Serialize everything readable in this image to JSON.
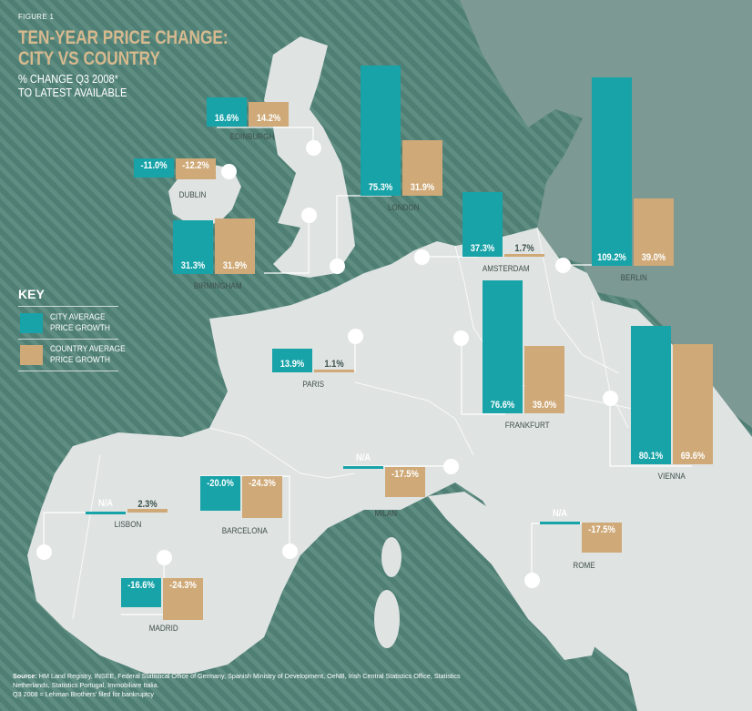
{
  "figure_label": "FIGURE 1",
  "title": "TEN-YEAR PRICE CHANGE:\nCITY VS COUNTRY",
  "subtitle": "% CHANGE Q3 2008*\nTO LATEST AVAILABLE",
  "key": {
    "title": "KEY",
    "city_label": "CITY AVERAGE\nPRICE GROWTH",
    "country_label": "COUNTRY AVERAGE\nPRICE GROWTH"
  },
  "colors": {
    "city": "#17a3a8",
    "country": "#cfa977",
    "sea": "#4f7f74",
    "land": "#dfe3e2",
    "land_far": "#7c9993"
  },
  "source": {
    "prefix": "Source:",
    "text": "HM Land Registry, INSEE, Federal Statistical Office of Germany, Spanish Ministry of Development, OeNB, Irish Central Statistics Office, Statistics Netherlands, Statistics Portugal, Immobiliare Italia.",
    "note": "Q3 2008 = Lehman Brothers' filed for bankruptcy"
  },
  "chart_data": {
    "type": "bar",
    "title": "TEN-YEAR PRICE CHANGE: CITY VS COUNTRY",
    "subtitle": "% CHANGE Q3 2008* TO LATEST AVAILABLE",
    "unit": "%",
    "legend": "left",
    "series_names": [
      "CITY AVERAGE PRICE GROWTH",
      "COUNTRY AVERAGE PRICE GROWTH"
    ],
    "cities": [
      {
        "name": "EDINBURGH",
        "city": 16.6,
        "country": 14.2,
        "city_text": "16.6%",
        "country_text": "14.2%"
      },
      {
        "name": "DUBLIN",
        "city": -11.0,
        "country": -12.2,
        "city_text": "-11.0%",
        "country_text": "-12.2%"
      },
      {
        "name": "LONDON",
        "city": 75.3,
        "country": 31.9,
        "city_text": "75.3%",
        "country_text": "31.9%"
      },
      {
        "name": "BIRMINGHAM",
        "city": 31.3,
        "country": 31.9,
        "city_text": "31.3%",
        "country_text": "31.9%"
      },
      {
        "name": "AMSTERDAM",
        "city": 37.3,
        "country": 1.7,
        "city_text": "37.3%",
        "country_text": "1.7%"
      },
      {
        "name": "BERLIN",
        "city": 109.2,
        "country": 39.0,
        "city_text": "109.2%",
        "country_text": "39.0%"
      },
      {
        "name": "PARIS",
        "city": 13.9,
        "country": 1.1,
        "city_text": "13.9%",
        "country_text": "1.1%"
      },
      {
        "name": "FRANKFURT",
        "city": 76.6,
        "country": 39.0,
        "city_text": "76.6%",
        "country_text": "39.0%"
      },
      {
        "name": "VIENNA",
        "city": 80.1,
        "country": 69.6,
        "city_text": "80.1%",
        "country_text": "69.6%"
      },
      {
        "name": "LISBON",
        "city": null,
        "country": 2.3,
        "city_text": "N/A",
        "country_text": "2.3%"
      },
      {
        "name": "BARCELONA",
        "city": -20.0,
        "country": -24.3,
        "city_text": "-20.0%",
        "country_text": "-24.3%"
      },
      {
        "name": "MILAN",
        "city": null,
        "country": -17.5,
        "city_text": "N/A",
        "country_text": "-17.5%"
      },
      {
        "name": "MADRID",
        "city": -16.6,
        "country": -24.3,
        "city_text": "-16.6%",
        "country_text": "-24.3%"
      },
      {
        "name": "ROME",
        "city": null,
        "country": -17.5,
        "city_text": "N/A",
        "country_text": "-17.5%"
      }
    ]
  }
}
